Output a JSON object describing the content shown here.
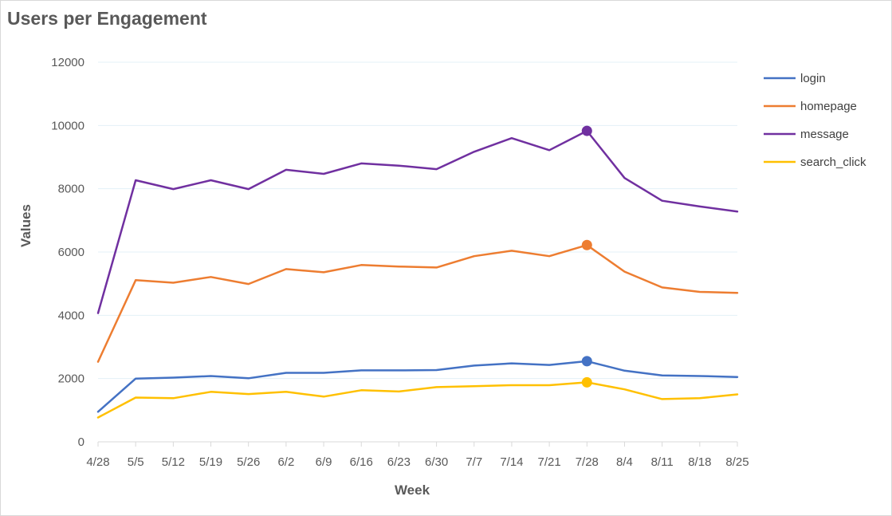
{
  "chart_data": {
    "type": "line",
    "title": "Users per Engagement",
    "xlabel": "Week",
    "ylabel": "Values",
    "ylim": [
      0,
      12000
    ],
    "yticks": [
      0,
      2000,
      4000,
      6000,
      8000,
      10000,
      12000
    ],
    "grid": true,
    "legend_position": "right",
    "categories": [
      "4/28",
      "5/5",
      "5/12",
      "5/19",
      "5/26",
      "6/2",
      "6/9",
      "6/16",
      "6/23",
      "6/30",
      "7/7",
      "7/14",
      "7/21",
      "7/28",
      "8/4",
      "8/11",
      "8/18",
      "8/25"
    ],
    "highlight_category": "7/28",
    "series": [
      {
        "name": "login",
        "color": "#4472c4",
        "values": [
          950,
          2000,
          2030,
          2080,
          2010,
          2180,
          2180,
          2260,
          2260,
          2270,
          2410,
          2480,
          2430,
          2550,
          2250,
          2100,
          2080,
          2050
        ]
      },
      {
        "name": "homepage",
        "color": "#ed7d31",
        "values": [
          2530,
          5110,
          5030,
          5210,
          4990,
          5460,
          5360,
          5590,
          5540,
          5510,
          5870,
          6040,
          5870,
          6220,
          5380,
          4880,
          4740,
          4710
        ]
      },
      {
        "name": "message",
        "color": "#7030a0",
        "values": [
          4070,
          8270,
          7990,
          8270,
          7990,
          8600,
          8470,
          8800,
          8730,
          8620,
          9170,
          9600,
          9220,
          9830,
          8340,
          7620,
          7440,
          7280
        ]
      },
      {
        "name": "search_click",
        "color": "#ffc000",
        "values": [
          770,
          1400,
          1380,
          1580,
          1510,
          1580,
          1430,
          1630,
          1590,
          1730,
          1760,
          1790,
          1790,
          1880,
          1660,
          1350,
          1380,
          1500
        ]
      }
    ]
  }
}
